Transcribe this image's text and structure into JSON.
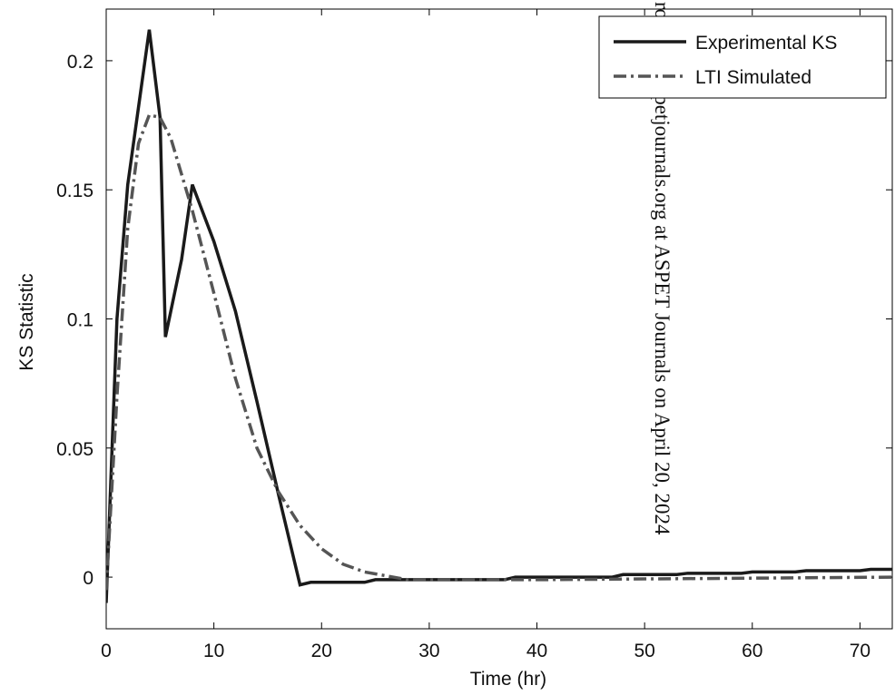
{
  "chart_data": {
    "type": "line",
    "xlabel": "Time (hr)",
    "ylabel": "KS Statistic",
    "xlim": [
      0,
      73
    ],
    "ylim": [
      -0.02,
      0.22
    ],
    "xticks": [
      0,
      10,
      20,
      30,
      40,
      50,
      60,
      70
    ],
    "yticks": [
      0,
      0.05,
      0.1,
      0.15,
      0.2
    ],
    "grid": false,
    "legend": "upper right",
    "watermark": "rom jpet.aspetjournals.org at ASPET Journals on April 20, 2024",
    "series": [
      {
        "name": "Experimental KS",
        "color": "#1a1a1a",
        "dash": "solid",
        "x": [
          0,
          1,
          2,
          4,
          5,
          5.5,
          7,
          8,
          10,
          12,
          14,
          16,
          18,
          19,
          24,
          25,
          29,
          37,
          38,
          47,
          48,
          53,
          54,
          59,
          60,
          64,
          65,
          70,
          71,
          73
        ],
        "values": [
          -0.01,
          0.1,
          0.152,
          0.212,
          0.178,
          0.093,
          0.123,
          0.152,
          0.13,
          0.103,
          0.068,
          0.032,
          -0.003,
          -0.002,
          -0.002,
          -0.001,
          -0.001,
          -0.001,
          0,
          0,
          0.001,
          0.001,
          0.0015,
          0.0015,
          0.002,
          0.002,
          0.0025,
          0.0025,
          0.003,
          0.003
        ]
      },
      {
        "name": "LTI Simulated",
        "color": "#555555",
        "dash": "dashdot",
        "x": [
          0,
          1,
          2,
          3,
          4,
          5,
          6,
          8,
          10,
          12,
          14,
          16,
          18,
          20,
          22,
          24,
          26,
          28,
          40,
          73
        ],
        "values": [
          -0.005,
          0.07,
          0.135,
          0.168,
          0.179,
          0.178,
          0.17,
          0.142,
          0.11,
          0.077,
          0.05,
          0.033,
          0.02,
          0.011,
          0.005,
          0.002,
          0.0005,
          -0.001,
          -0.001,
          0
        ]
      }
    ]
  }
}
